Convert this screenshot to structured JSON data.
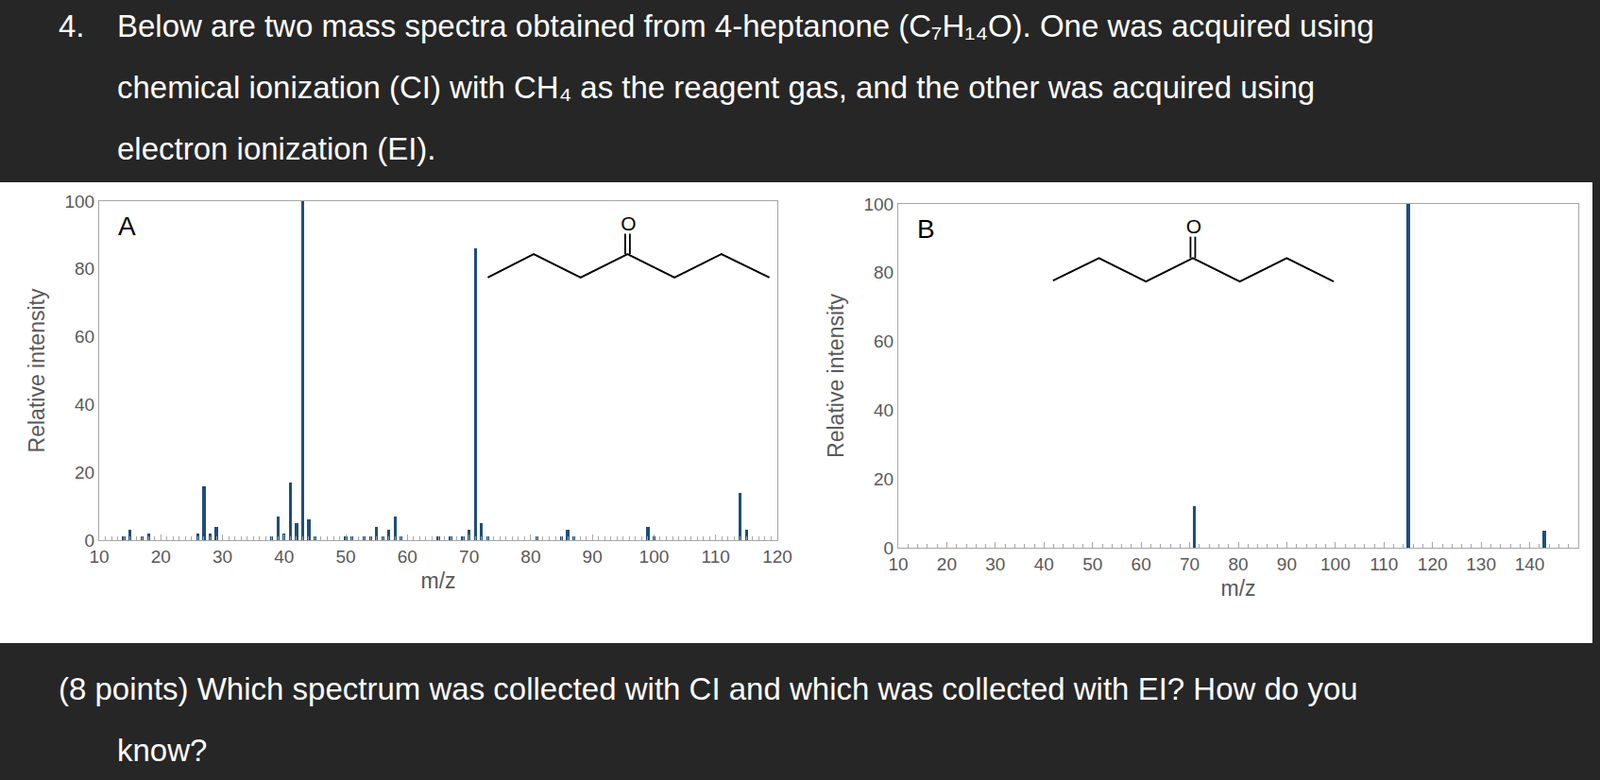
{
  "question": {
    "number": "4.",
    "lines": [
      "Below are two mass spectra obtained from 4-heptanone (C₇H₁₄O). One was acquired using",
      "chemical ionization (CI) with CH₄ as the reagent gas, and the other was acquired using",
      "electron ionization (EI)."
    ]
  },
  "prompt": {
    "lines": [
      "(8 points) Which spectrum was collected with CI and which was collected with EI? How do you",
      "know?"
    ]
  },
  "chart_data": [
    {
      "type": "bar",
      "label": "A",
      "structure_atom_label": "O",
      "x_label": "m/z",
      "y_label": "Relative intensity",
      "color": "#1f4e79",
      "x": [
        14,
        15,
        17,
        18,
        26,
        27,
        28,
        29,
        38,
        39,
        40,
        41,
        42,
        43,
        44,
        45,
        50,
        51,
        53,
        54,
        55,
        56,
        57,
        58,
        59,
        65,
        67,
        69,
        70,
        71,
        72,
        73,
        81,
        85,
        86,
        87,
        99,
        100,
        114,
        115
      ],
      "values": [
        1,
        3,
        1,
        2,
        2,
        16,
        2,
        4,
        1,
        7,
        2,
        17,
        5,
        100,
        6,
        1,
        1,
        1,
        1,
        1,
        4,
        1,
        3,
        7,
        1,
        1,
        1,
        1,
        3,
        86,
        5,
        1,
        1,
        1,
        3,
        1,
        4,
        1,
        14,
        3
      ],
      "xlim": [
        10,
        120
      ],
      "xticks": [
        10,
        20,
        30,
        40,
        50,
        60,
        70,
        80,
        90,
        100,
        110,
        120
      ],
      "ylim": [
        0,
        100
      ],
      "yticks": [
        0,
        20,
        40,
        60,
        80,
        100
      ],
      "grid": false
    },
    {
      "type": "bar",
      "label": "B",
      "structure_atom_label": "O",
      "x_label": "m/z",
      "y_label": "Relative intensity",
      "color": "#1f4e79",
      "x": [
        71,
        115,
        143
      ],
      "values": [
        12,
        100,
        5
      ],
      "xlim": [
        10,
        150
      ],
      "xticks": [
        10,
        20,
        30,
        40,
        50,
        60,
        70,
        80,
        90,
        100,
        110,
        120,
        130,
        140
      ],
      "ylim": [
        0,
        100
      ],
      "yticks": [
        0,
        20,
        40,
        60,
        80,
        100
      ],
      "grid": false
    }
  ]
}
